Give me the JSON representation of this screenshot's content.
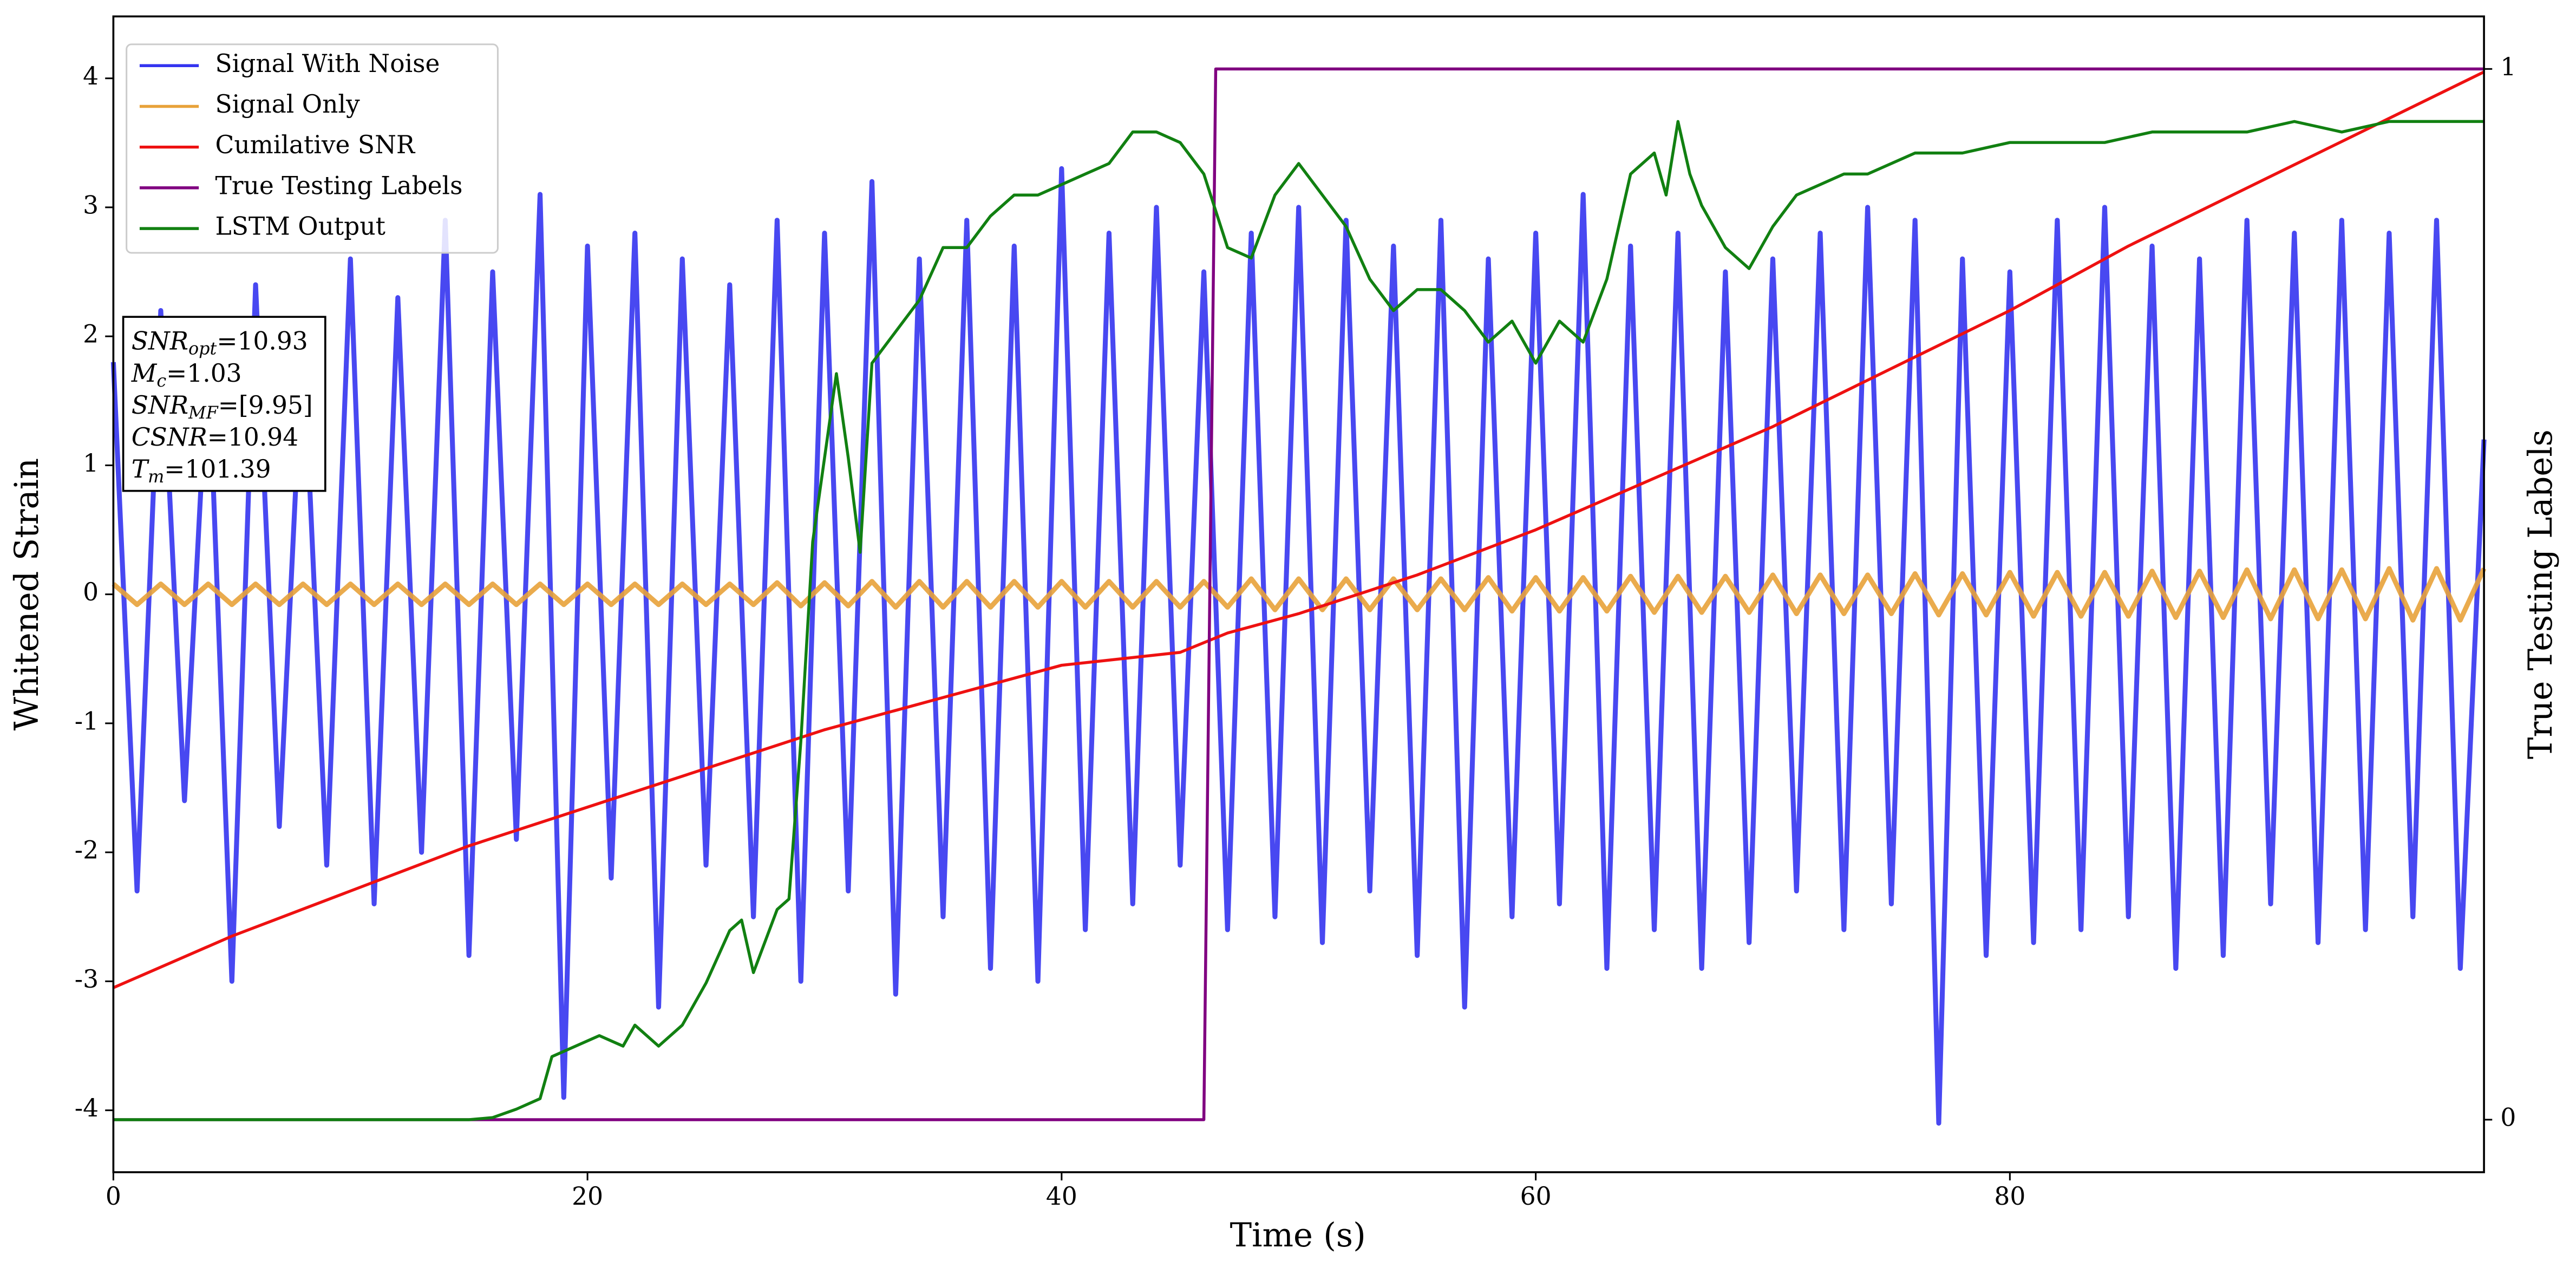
{
  "chart_data": {
    "type": "line",
    "xlabel": "Time (s)",
    "ylabel": "Whitened Strain",
    "y2label": "True Testing Labels",
    "xlim": [
      0,
      100
    ],
    "ylim": [
      -4.48,
      4.48
    ],
    "y2lim": [
      -0.05,
      1.05
    ],
    "xticks": [
      0,
      20,
      40,
      60,
      80
    ],
    "yticks": [
      -4,
      -3,
      -2,
      -1,
      0,
      1,
      2,
      3,
      4
    ],
    "y2ticks": [
      0,
      1
    ],
    "legend": "upper left",
    "series": [
      {
        "name": "Signal With Noise",
        "color": "#3434f0",
        "x": [
          0,
          1,
          2,
          3,
          4,
          5,
          6,
          7,
          8,
          9,
          10,
          11,
          12,
          13,
          14,
          15,
          16,
          17,
          18,
          19,
          20,
          21,
          22,
          23,
          24,
          25,
          26,
          27,
          28,
          29,
          30,
          31,
          32,
          33,
          34,
          35,
          36,
          37,
          38,
          39,
          40,
          41,
          42,
          43,
          44,
          45,
          46,
          47,
          48,
          49,
          50,
          51,
          52,
          53,
          54,
          55,
          56,
          57,
          58,
          59,
          60,
          61,
          62,
          63,
          64,
          65,
          66,
          67,
          68,
          69,
          70,
          71,
          72,
          73,
          74,
          75,
          76,
          77,
          78,
          79,
          80,
          81,
          82,
          83,
          84,
          85,
          86,
          87,
          88,
          89,
          90,
          91,
          92,
          93,
          94,
          95,
          96,
          97,
          98,
          99,
          100
        ],
        "values": [
          1.8,
          -2.3,
          2.2,
          -1.6,
          1.9,
          -3.0,
          2.4,
          -1.8,
          2.0,
          -2.1,
          2.6,
          -2.4,
          2.3,
          -2.0,
          2.9,
          -2.8,
          2.5,
          -1.9,
          3.1,
          -3.9,
          2.7,
          -2.2,
          2.8,
          -3.2,
          2.6,
          -2.1,
          2.4,
          -2.5,
          2.9,
          -3.0,
          2.8,
          -2.3,
          3.2,
          -3.1,
          2.6,
          -2.5,
          2.9,
          -2.9,
          2.7,
          -3.0,
          3.3,
          -2.6,
          2.8,
          -2.4,
          3.0,
          -2.1,
          2.5,
          -2.6,
          2.8,
          -2.5,
          3.0,
          -2.7,
          2.9,
          -2.3,
          2.7,
          -2.8,
          2.9,
          -3.2,
          2.6,
          -2.5,
          2.8,
          -2.4,
          3.1,
          -2.9,
          2.7,
          -2.6,
          2.8,
          -2.9,
          2.5,
          -2.7,
          2.6,
          -2.3,
          2.8,
          -2.6,
          3.0,
          -2.4,
          2.9,
          -4.1,
          2.6,
          -2.8,
          2.5,
          -2.7,
          2.9,
          -2.6,
          3.0,
          -2.5,
          2.7,
          -2.9,
          2.6,
          -2.8,
          2.9,
          -2.4,
          2.8,
          -2.7,
          2.9,
          -2.6,
          2.8,
          -2.5,
          2.9,
          -2.9,
          1.2
        ]
      },
      {
        "name": "Signal Only",
        "color": "#e8a23a",
        "x": [
          0,
          1,
          2,
          3,
          4,
          5,
          6,
          7,
          8,
          9,
          10,
          11,
          12,
          13,
          14,
          15,
          16,
          17,
          18,
          19,
          20,
          21,
          22,
          23,
          24,
          25,
          26,
          27,
          28,
          29,
          30,
          31,
          32,
          33,
          34,
          35,
          36,
          37,
          38,
          39,
          40,
          41,
          42,
          43,
          44,
          45,
          46,
          47,
          48,
          49,
          50,
          51,
          52,
          53,
          54,
          55,
          56,
          57,
          58,
          59,
          60,
          61,
          62,
          63,
          64,
          65,
          66,
          67,
          68,
          69,
          70,
          71,
          72,
          73,
          74,
          75,
          76,
          77,
          78,
          79,
          80,
          81,
          82,
          83,
          84,
          85,
          86,
          87,
          88,
          89,
          90,
          91,
          92,
          93,
          94,
          95,
          96,
          97,
          98,
          99,
          100
        ],
        "values": [
          0.08,
          -0.08,
          0.08,
          -0.08,
          0.08,
          -0.08,
          0.08,
          -0.08,
          0.08,
          -0.08,
          0.08,
          -0.08,
          0.08,
          -0.08,
          0.08,
          -0.08,
          0.08,
          -0.08,
          0.08,
          -0.08,
          0.08,
          -0.08,
          0.08,
          -0.08,
          0.08,
          -0.08,
          0.08,
          -0.08,
          0.09,
          -0.09,
          0.09,
          -0.09,
          0.1,
          -0.1,
          0.1,
          -0.1,
          0.1,
          -0.1,
          0.1,
          -0.1,
          0.1,
          -0.1,
          0.1,
          -0.1,
          0.1,
          -0.1,
          0.1,
          -0.1,
          0.12,
          -0.12,
          0.12,
          -0.12,
          0.12,
          -0.12,
          0.12,
          -0.12,
          0.12,
          -0.12,
          0.13,
          -0.13,
          0.13,
          -0.13,
          0.13,
          -0.13,
          0.14,
          -0.14,
          0.14,
          -0.14,
          0.14,
          -0.14,
          0.15,
          -0.15,
          0.15,
          -0.15,
          0.15,
          -0.15,
          0.16,
          -0.16,
          0.16,
          -0.16,
          0.17,
          -0.17,
          0.17,
          -0.17,
          0.17,
          -0.17,
          0.18,
          -0.18,
          0.18,
          -0.18,
          0.19,
          -0.19,
          0.19,
          -0.19,
          0.19,
          -0.19,
          0.2,
          -0.2,
          0.2,
          -0.2,
          0.2
        ]
      },
      {
        "name": "Cumilative SNR",
        "color": "#ee1111",
        "x": [
          0,
          5,
          10,
          15,
          20,
          25,
          30,
          35,
          40,
          45,
          47,
          50,
          55,
          60,
          65,
          70,
          75,
          80,
          85,
          90,
          95,
          100
        ],
        "values": [
          -3.05,
          -2.65,
          -2.3,
          -1.95,
          -1.65,
          -1.35,
          -1.05,
          -0.8,
          -0.55,
          -0.45,
          -0.3,
          -0.15,
          0.15,
          0.5,
          0.9,
          1.3,
          1.75,
          2.2,
          2.7,
          3.15,
          3.6,
          4.05
        ]
      },
      {
        "name": "True Testing Labels",
        "color": "#800080",
        "axis": "y2",
        "x": [
          0,
          46,
          46.5,
          100
        ],
        "values": [
          0,
          0,
          1,
          1
        ]
      },
      {
        "name": "LSTM Output",
        "color": "#118011",
        "axis": "y2",
        "x": [
          0,
          15,
          16,
          17,
          18,
          18.5,
          19.5,
          20.5,
          21.5,
          22,
          23,
          24,
          25,
          26,
          26.5,
          27,
          28,
          28.5,
          29,
          29.5,
          30.5,
          31,
          31.5,
          32,
          33,
          34,
          35,
          36,
          37,
          38,
          39,
          40,
          41,
          42,
          43,
          44,
          45,
          46,
          47,
          48,
          49,
          50,
          51,
          52,
          53,
          54,
          55,
          56,
          57,
          58,
          59,
          60,
          61,
          62,
          63,
          64,
          65,
          65.5,
          66,
          66.5,
          67,
          68,
          69,
          70,
          71,
          72,
          73,
          74,
          75,
          76,
          78,
          80,
          82,
          84,
          86,
          88,
          90,
          92,
          94,
          96,
          98,
          100
        ],
        "values": [
          0,
          0,
          0.002,
          0.01,
          0.02,
          0.06,
          0.07,
          0.08,
          0.07,
          0.09,
          0.07,
          0.09,
          0.13,
          0.18,
          0.19,
          0.14,
          0.2,
          0.21,
          0.36,
          0.55,
          0.71,
          0.63,
          0.54,
          0.72,
          0.75,
          0.78,
          0.83,
          0.83,
          0.86,
          0.88,
          0.88,
          0.89,
          0.9,
          0.91,
          0.94,
          0.94,
          0.93,
          0.9,
          0.83,
          0.82,
          0.88,
          0.91,
          0.88,
          0.85,
          0.8,
          0.77,
          0.79,
          0.79,
          0.77,
          0.74,
          0.76,
          0.72,
          0.76,
          0.74,
          0.8,
          0.9,
          0.92,
          0.88,
          0.95,
          0.9,
          0.87,
          0.83,
          0.81,
          0.85,
          0.88,
          0.89,
          0.9,
          0.9,
          0.91,
          0.92,
          0.92,
          0.93,
          0.93,
          0.93,
          0.94,
          0.94,
          0.94,
          0.95,
          0.94,
          0.95,
          0.95,
          0.95
        ]
      }
    ],
    "annotation": [
      {
        "name": "SNR",
        "sub": "opt",
        "text": "=10.93"
      },
      {
        "name": "M",
        "sub": "c",
        "text": "=1.03"
      },
      {
        "name": "SNR",
        "sub": "MF",
        "text": "=[9.95]"
      },
      {
        "name": "CSNR",
        "text": "=10.94"
      },
      {
        "name": "T",
        "sub": "m",
        "text": "=101.39"
      }
    ]
  }
}
